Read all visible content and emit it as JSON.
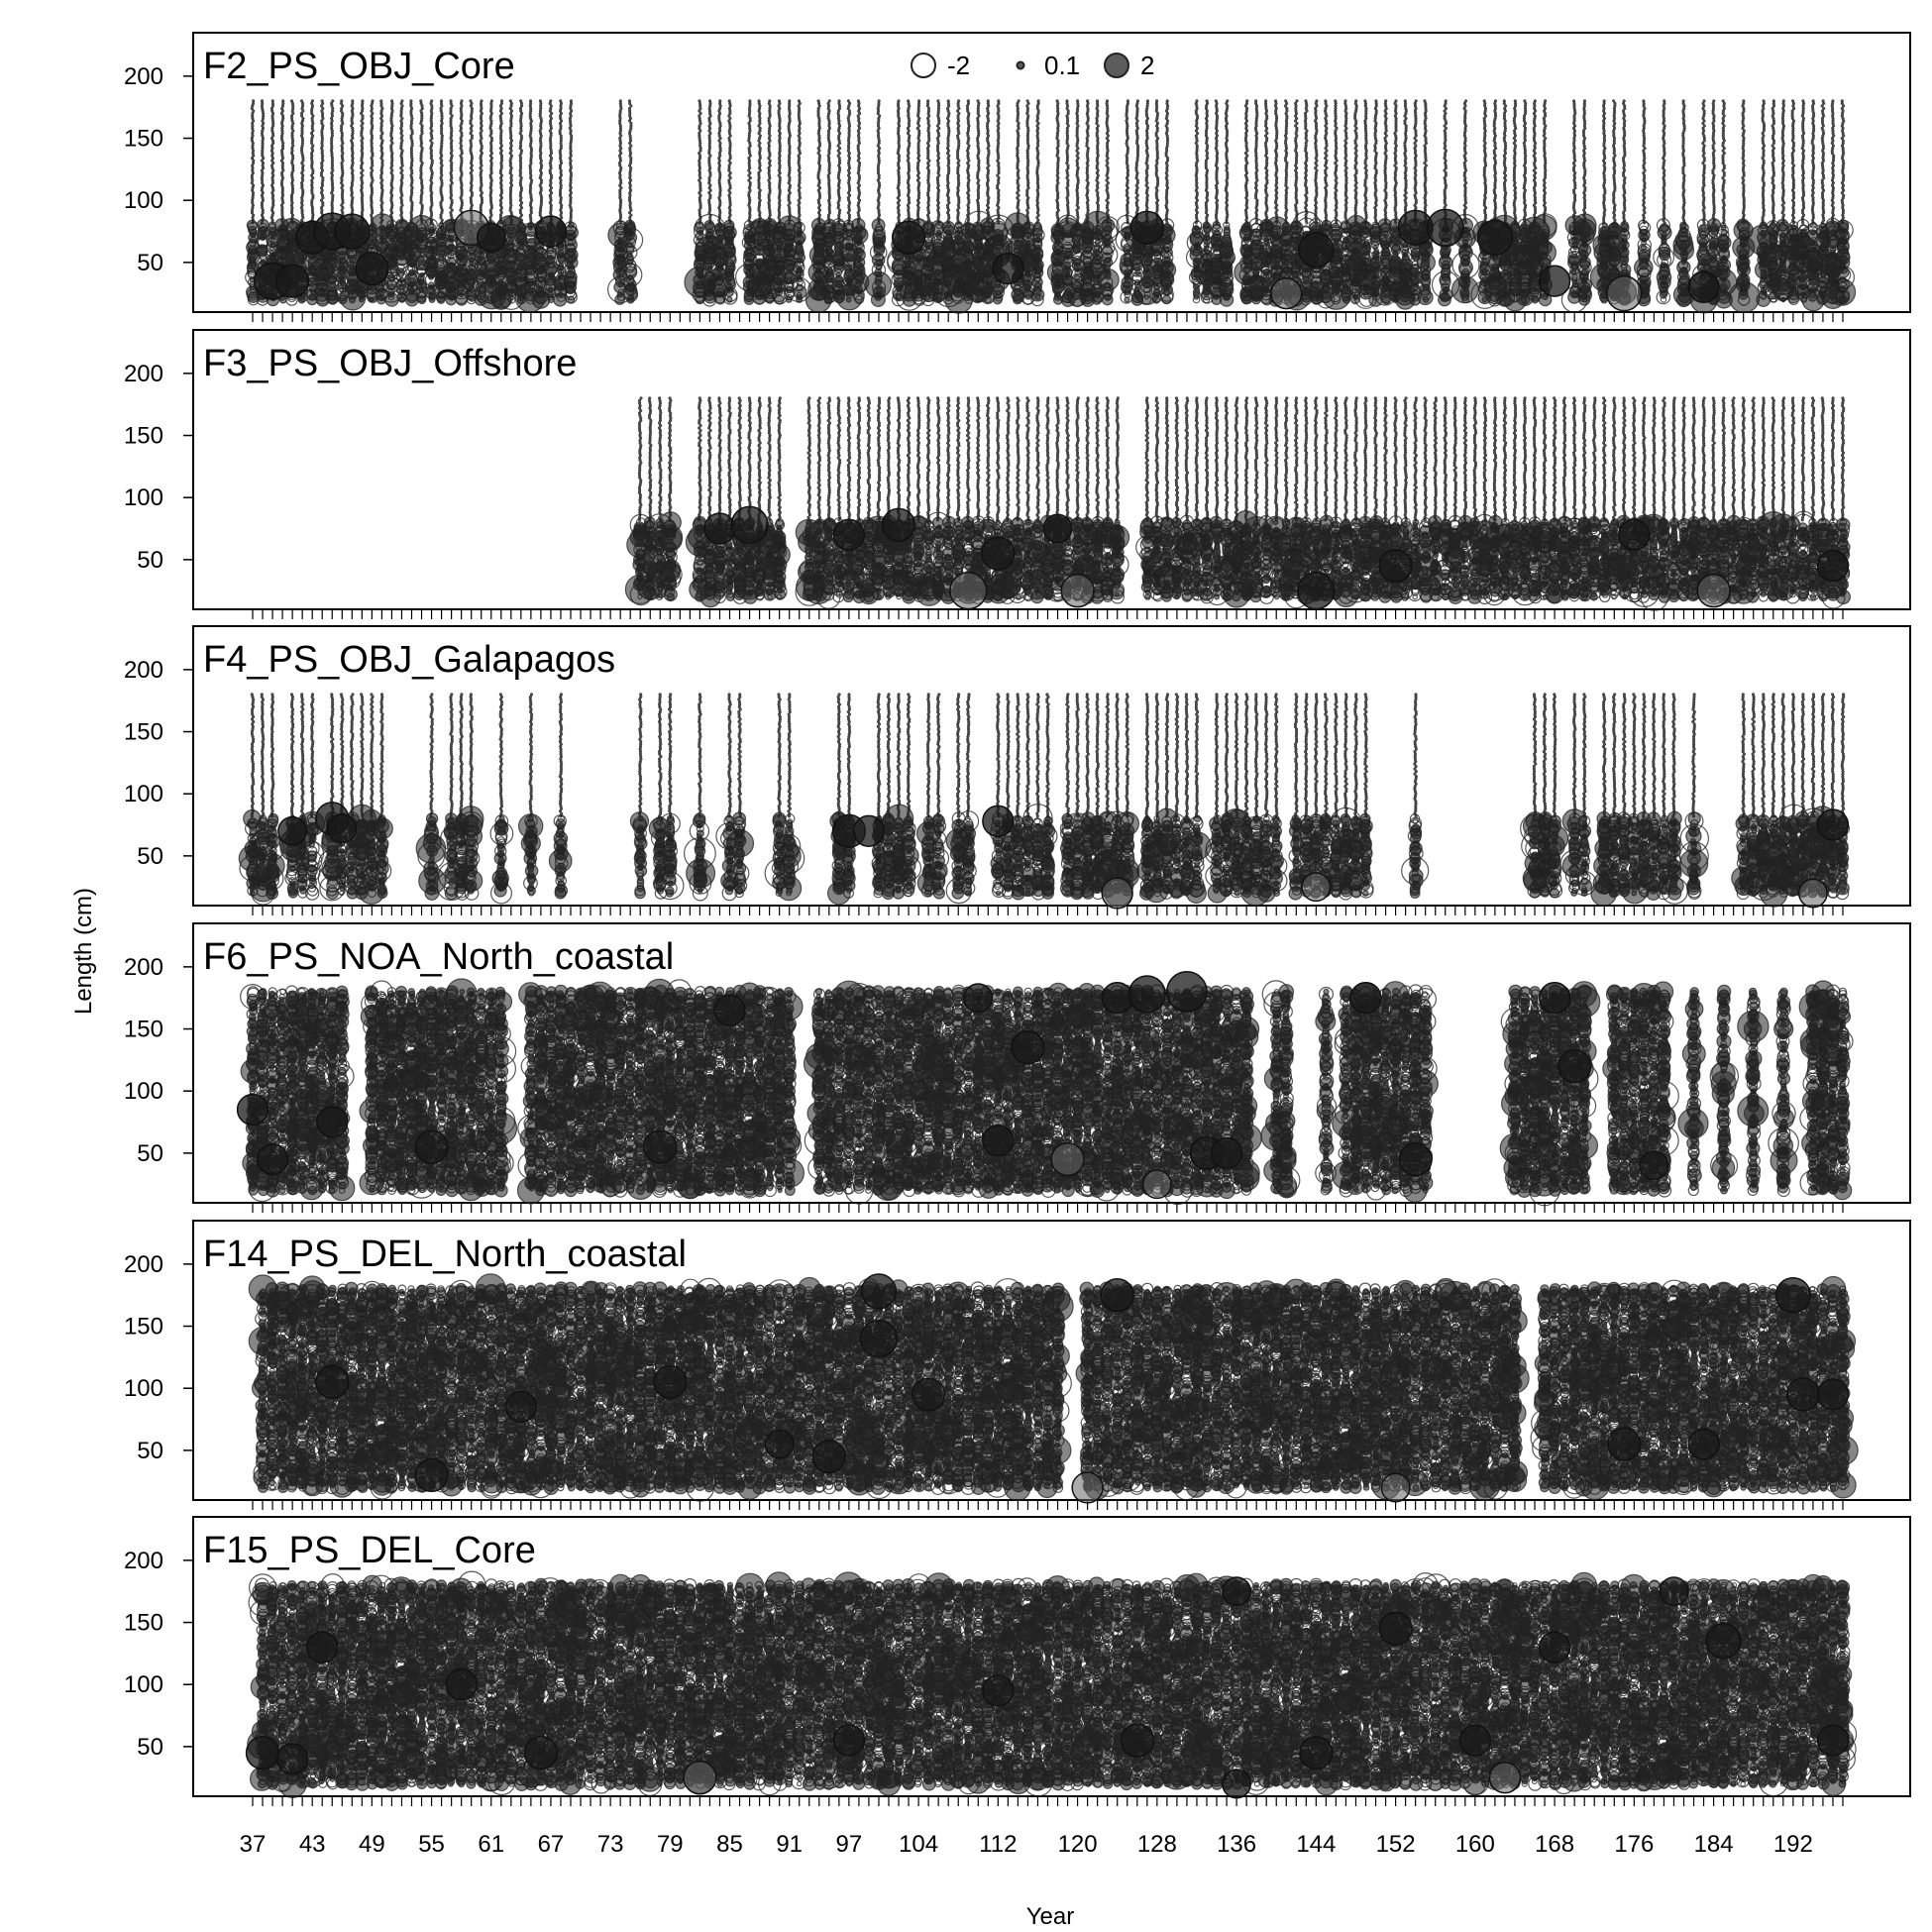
{
  "chart_data": {
    "type": "scatter",
    "subtype": "bubble",
    "xlabel": "Year",
    "ylabel": "Length (cm)",
    "ylim": [
      10,
      235
    ],
    "y_ticks": [
      50,
      100,
      150,
      200
    ],
    "x_ticks": [
      37,
      43,
      49,
      55,
      61,
      67,
      73,
      79,
      85,
      91,
      97,
      104,
      112,
      120,
      128,
      136,
      144,
      152,
      160,
      168,
      176,
      184,
      192
    ],
    "x_period_range": [
      37,
      197
    ],
    "grid": false,
    "point_color": "#222222",
    "legend": {
      "placement": "top-center",
      "entries": [
        {
          "label": "-2",
          "value": -2,
          "style": "open"
        },
        {
          "label": "0.1",
          "value": 0.1,
          "style": "filled"
        },
        {
          "label": "2",
          "value": 2,
          "style": "filled"
        }
      ]
    },
    "panels": [
      {
        "title": "F2_PS_OBJ_Core",
        "length_range": [
          20,
          180
        ],
        "observed_length_max": 80,
        "segments": [
          [
            37,
            69
          ],
          [
            74,
            75
          ],
          [
            82,
            197
          ]
        ],
        "gaps": [
          77,
          79,
          80,
          86,
          93,
          99,
          101,
          113,
          117,
          124,
          130,
          131,
          136,
          156,
          158,
          160,
          168,
          169,
          172,
          176,
          178,
          180,
          182,
          186,
          188
        ],
        "large_residuals": [
          {
            "x": 39,
            "y": 35,
            "r": 2.0
          },
          {
            "x": 41,
            "y": 35,
            "r": 1.6
          },
          {
            "x": 43,
            "y": 70,
            "r": 1.6
          },
          {
            "x": 45,
            "y": 75,
            "r": 2.0
          },
          {
            "x": 47,
            "y": 75,
            "r": 1.8
          },
          {
            "x": 49,
            "y": 45,
            "r": 1.6
          },
          {
            "x": 59,
            "y": 78,
            "r": -1.8
          },
          {
            "x": 61,
            "y": 70,
            "r": 1.2
          },
          {
            "x": 67,
            "y": 75,
            "r": 1.4
          },
          {
            "x": 103,
            "y": 70,
            "r": 1.6
          },
          {
            "x": 113,
            "y": 45,
            "r": 1.4
          },
          {
            "x": 127,
            "y": 78,
            "r": 1.6
          },
          {
            "x": 141,
            "y": 25,
            "r": -1.4
          },
          {
            "x": 144,
            "y": 60,
            "r": 1.8
          },
          {
            "x": 154,
            "y": 78,
            "r": 1.8
          },
          {
            "x": 157,
            "y": 78,
            "r": 2.0
          },
          {
            "x": 162,
            "y": 70,
            "r": 1.8
          },
          {
            "x": 168,
            "y": 35,
            "r": 1.4
          },
          {
            "x": 175,
            "y": 25,
            "r": -1.8
          },
          {
            "x": 183,
            "y": 30,
            "r": 1.4
          }
        ]
      },
      {
        "title": "F3_PS_OBJ_Offshore",
        "length_range": [
          20,
          180
        ],
        "observed_length_max": 80,
        "segments": [
          [
            76,
            79
          ],
          [
            82,
            197
          ]
        ],
        "gaps": [
          91,
          92,
          125,
          126
        ],
        "large_residuals": [
          {
            "x": 84,
            "y": 75,
            "r": 1.4
          },
          {
            "x": 87,
            "y": 78,
            "r": 2.0
          },
          {
            "x": 97,
            "y": 70,
            "r": 1.4
          },
          {
            "x": 102,
            "y": 78,
            "r": 1.6
          },
          {
            "x": 109,
            "y": 25,
            "r": -2.0
          },
          {
            "x": 112,
            "y": 55,
            "r": 1.6
          },
          {
            "x": 118,
            "y": 75,
            "r": 1.2
          },
          {
            "x": 120,
            "y": 25,
            "r": -1.6
          },
          {
            "x": 144,
            "y": 25,
            "r": 2.0
          },
          {
            "x": 152,
            "y": 45,
            "r": 1.6
          },
          {
            "x": 176,
            "y": 70,
            "r": 1.4
          },
          {
            "x": 184,
            "y": 25,
            "r": -1.6
          },
          {
            "x": 196,
            "y": 45,
            "r": 1.4
          }
        ]
      },
      {
        "title": "F4_PS_OBJ_Galapagos",
        "length_range": [
          20,
          180
        ],
        "observed_length_max": 80,
        "segments": [
          [
            37,
            69
          ],
          [
            76,
            79
          ],
          [
            82,
            117
          ],
          [
            119,
            197
          ]
        ],
        "gaps": [
          40,
          44,
          51,
          52,
          53,
          54,
          56,
          60,
          61,
          63,
          64,
          66,
          67,
          69,
          77,
          83,
          84,
          87,
          88,
          89,
          92,
          93,
          94,
          95,
          98,
          99,
          104,
          107,
          110,
          111,
          118,
          126,
          133,
          141,
          150,
          151,
          152,
          153,
          155,
          156,
          157,
          158,
          159,
          160,
          161,
          162,
          163,
          164,
          165,
          169,
          172,
          181,
          183,
          184,
          185,
          186
        ],
        "large_residuals": [
          {
            "x": 41,
            "y": 70,
            "r": 1.2
          },
          {
            "x": 45,
            "y": 80,
            "r": 1.6
          },
          {
            "x": 46,
            "y": 72,
            "r": 1.2
          },
          {
            "x": 97,
            "y": 70,
            "r": 1.6
          },
          {
            "x": 99,
            "y": 70,
            "r": 1.4
          },
          {
            "x": 112,
            "y": 78,
            "r": 1.4
          },
          {
            "x": 124,
            "y": 20,
            "r": -1.4
          },
          {
            "x": 144,
            "y": 25,
            "r": -1.2
          },
          {
            "x": 194,
            "y": 20,
            "r": -1.2
          },
          {
            "x": 196,
            "y": 75,
            "r": 1.4
          }
        ]
      },
      {
        "title": "F6_PS_NOA_North_coastal",
        "length_range": [
          20,
          180
        ],
        "observed_length_max": 180,
        "segments": [
          [
            37,
            155
          ],
          [
            164,
            197
          ]
        ],
        "gaps": [
          47,
          48,
          63,
          64,
          92,
          93,
          138,
          139,
          142,
          143,
          144,
          146,
          172,
          173,
          180,
          181,
          183,
          184,
          186,
          187,
          189,
          190,
          192,
          193
        ],
        "large_residuals": [
          {
            "x": 37,
            "y": 85,
            "r": 1.4
          },
          {
            "x": 39,
            "y": 45,
            "r": 1.4
          },
          {
            "x": 45,
            "y": 75,
            "r": 1.4
          },
          {
            "x": 55,
            "y": 55,
            "r": 1.6
          },
          {
            "x": 78,
            "y": 55,
            "r": 1.6
          },
          {
            "x": 85,
            "y": 165,
            "r": 1.4
          },
          {
            "x": 110,
            "y": 175,
            "r": 1.2
          },
          {
            "x": 112,
            "y": 60,
            "r": 1.4
          },
          {
            "x": 115,
            "y": 135,
            "r": 1.6
          },
          {
            "x": 119,
            "y": 45,
            "r": -1.6
          },
          {
            "x": 124,
            "y": 175,
            "r": 1.4
          },
          {
            "x": 127,
            "y": 178,
            "r": 2.0
          },
          {
            "x": 128,
            "y": 25,
            "r": -1.2
          },
          {
            "x": 131,
            "y": 180,
            "r": 2.4
          },
          {
            "x": 133,
            "y": 50,
            "r": 1.6
          },
          {
            "x": 135,
            "y": 50,
            "r": 1.4
          },
          {
            "x": 149,
            "y": 175,
            "r": 1.4
          },
          {
            "x": 154,
            "y": 45,
            "r": 1.6
          },
          {
            "x": 168,
            "y": 175,
            "r": 1.4
          },
          {
            "x": 170,
            "y": 120,
            "r": 1.6
          },
          {
            "x": 178,
            "y": 40,
            "r": 1.2
          }
        ]
      },
      {
        "title": "F14_PS_DEL_North_coastal",
        "length_range": [
          20,
          180
        ],
        "observed_length_max": 180,
        "segments": [
          [
            38,
            118
          ],
          [
            121,
            164
          ],
          [
            167,
            197
          ]
        ],
        "gaps": [],
        "large_residuals": [
          {
            "x": 45,
            "y": 105,
            "r": 1.6
          },
          {
            "x": 55,
            "y": 30,
            "r": 1.6
          },
          {
            "x": 64,
            "y": 85,
            "r": 1.4
          },
          {
            "x": 79,
            "y": 105,
            "r": 1.6
          },
          {
            "x": 90,
            "y": 55,
            "r": 1.2
          },
          {
            "x": 95,
            "y": 45,
            "r": 1.6
          },
          {
            "x": 100,
            "y": 178,
            "r": 1.8
          },
          {
            "x": 100,
            "y": 140,
            "r": 2.0
          },
          {
            "x": 105,
            "y": 95,
            "r": 1.6
          },
          {
            "x": 121,
            "y": 20,
            "r": -1.4
          },
          {
            "x": 124,
            "y": 175,
            "r": 1.6
          },
          {
            "x": 152,
            "y": 20,
            "r": -1.2
          },
          {
            "x": 175,
            "y": 55,
            "r": 1.6
          },
          {
            "x": 183,
            "y": 55,
            "r": 1.4
          },
          {
            "x": 192,
            "y": 175,
            "r": 1.8
          },
          {
            "x": 193,
            "y": 95,
            "r": 1.6
          },
          {
            "x": 196,
            "y": 95,
            "r": 1.4
          }
        ]
      },
      {
        "title": "F15_PS_DEL_Core",
        "length_range": [
          20,
          180
        ],
        "observed_length_max": 180,
        "segments": [
          [
            38,
            197
          ]
        ],
        "gaps": [],
        "large_residuals": [
          {
            "x": 38,
            "y": 45,
            "r": 1.6
          },
          {
            "x": 41,
            "y": 40,
            "r": 1.4
          },
          {
            "x": 44,
            "y": 130,
            "r": 1.4
          },
          {
            "x": 58,
            "y": 100,
            "r": 1.4
          },
          {
            "x": 66,
            "y": 45,
            "r": 1.6
          },
          {
            "x": 82,
            "y": 25,
            "r": -1.6
          },
          {
            "x": 97,
            "y": 55,
            "r": 1.4
          },
          {
            "x": 112,
            "y": 95,
            "r": 1.4
          },
          {
            "x": 126,
            "y": 55,
            "r": 1.6
          },
          {
            "x": 136,
            "y": 20,
            "r": 1.2
          },
          {
            "x": 136,
            "y": 175,
            "r": 1.2
          },
          {
            "x": 144,
            "y": 45,
            "r": 1.6
          },
          {
            "x": 152,
            "y": 145,
            "r": 1.6
          },
          {
            "x": 160,
            "y": 55,
            "r": 1.4
          },
          {
            "x": 163,
            "y": 25,
            "r": -1.4
          },
          {
            "x": 168,
            "y": 130,
            "r": 1.4
          },
          {
            "x": 180,
            "y": 175,
            "r": 1.2
          },
          {
            "x": 185,
            "y": 135,
            "r": 1.8
          },
          {
            "x": 196,
            "y": 55,
            "r": 1.4
          }
        ]
      }
    ]
  }
}
